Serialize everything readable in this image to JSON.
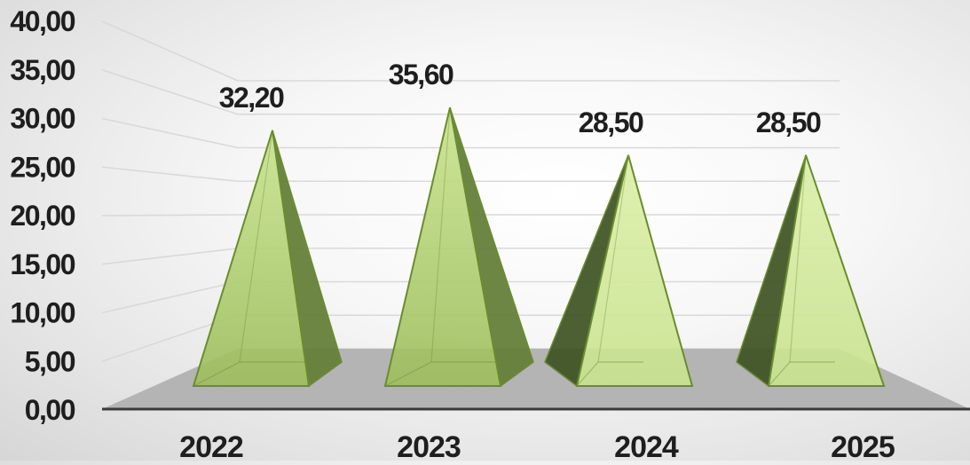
{
  "chart_data": {
    "type": "bar",
    "shape": "pyramid-3d",
    "title": "",
    "xlabel": "",
    "ylabel": "",
    "categories": [
      "2022",
      "2023",
      "2024",
      "2025"
    ],
    "values": [
      32.2,
      35.6,
      28.5,
      28.5
    ],
    "data_labels": [
      "32,20",
      "35,60",
      "28,50",
      "28,50"
    ],
    "y_ticks": [
      "0,00",
      "5,00",
      "10,00",
      "15,00",
      "20,00",
      "25,00",
      "30,00",
      "35,00",
      "40,00"
    ],
    "ylim": [
      0,
      40
    ],
    "grid": true,
    "legend": "none",
    "colors": {
      "front": "#9dbe5c",
      "front_light": "#c8e38e",
      "side": "#66803a",
      "side_dark": "#3e5222",
      "edge": "#6a8c30",
      "floor": "#b4b4b4",
      "axis": "#3a3a3a",
      "gridline": "#d9d9d9"
    }
  }
}
